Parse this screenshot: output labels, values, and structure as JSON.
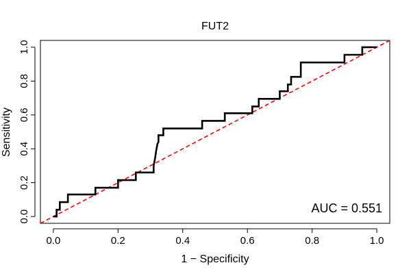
{
  "chart_data": {
    "type": "line",
    "title": "FUT2",
    "xlabel": "1 − Specificity",
    "ylabel": "Sensitivity",
    "xlim": [
      -0.04,
      1.04
    ],
    "ylim": [
      -0.04,
      1.04
    ],
    "xticks": [
      0.0,
      0.2,
      0.4,
      0.6,
      0.8,
      1.0
    ],
    "xtick_labels": [
      "0.0",
      "0.2",
      "0.4",
      "0.6",
      "0.8",
      "1.0"
    ],
    "yticks": [
      0.0,
      0.2,
      0.4,
      0.6,
      0.8,
      1.0
    ],
    "ytick_labels": [
      "0.0",
      "0.2",
      "0.4",
      "0.6",
      "0.8",
      "1.0"
    ],
    "grid": false,
    "annotation": "AUC = 0.551",
    "series": [
      {
        "color": "#000000",
        "style": "solid",
        "x": [
          0.0,
          0.01,
          0.01,
          0.02,
          0.02,
          0.045,
          0.045,
          0.13,
          0.13,
          0.2,
          0.2,
          0.255,
          0.255,
          0.31,
          0.31,
          0.315,
          0.318,
          0.32,
          0.322,
          0.325,
          0.325,
          0.34,
          0.34,
          0.46,
          0.46,
          0.53,
          0.53,
          0.615,
          0.615,
          0.635,
          0.635,
          0.7,
          0.7,
          0.725,
          0.725,
          0.735,
          0.735,
          0.765,
          0.765,
          0.9,
          0.9,
          0.955,
          0.955,
          1.0
        ],
        "y": [
          0.0,
          0.0,
          0.04,
          0.04,
          0.085,
          0.085,
          0.13,
          0.13,
          0.17,
          0.17,
          0.215,
          0.215,
          0.26,
          0.26,
          0.3,
          0.35,
          0.39,
          0.41,
          0.43,
          0.44,
          0.48,
          0.48,
          0.52,
          0.52,
          0.565,
          0.565,
          0.61,
          0.61,
          0.65,
          0.65,
          0.695,
          0.695,
          0.74,
          0.74,
          0.78,
          0.78,
          0.825,
          0.825,
          0.91,
          0.91,
          0.955,
          0.955,
          1.0,
          1.0
        ]
      },
      {
        "color": "#ff0000",
        "style": "dashed",
        "x": [
          -0.04,
          1.04
        ],
        "y": [
          -0.04,
          1.04
        ]
      }
    ]
  }
}
